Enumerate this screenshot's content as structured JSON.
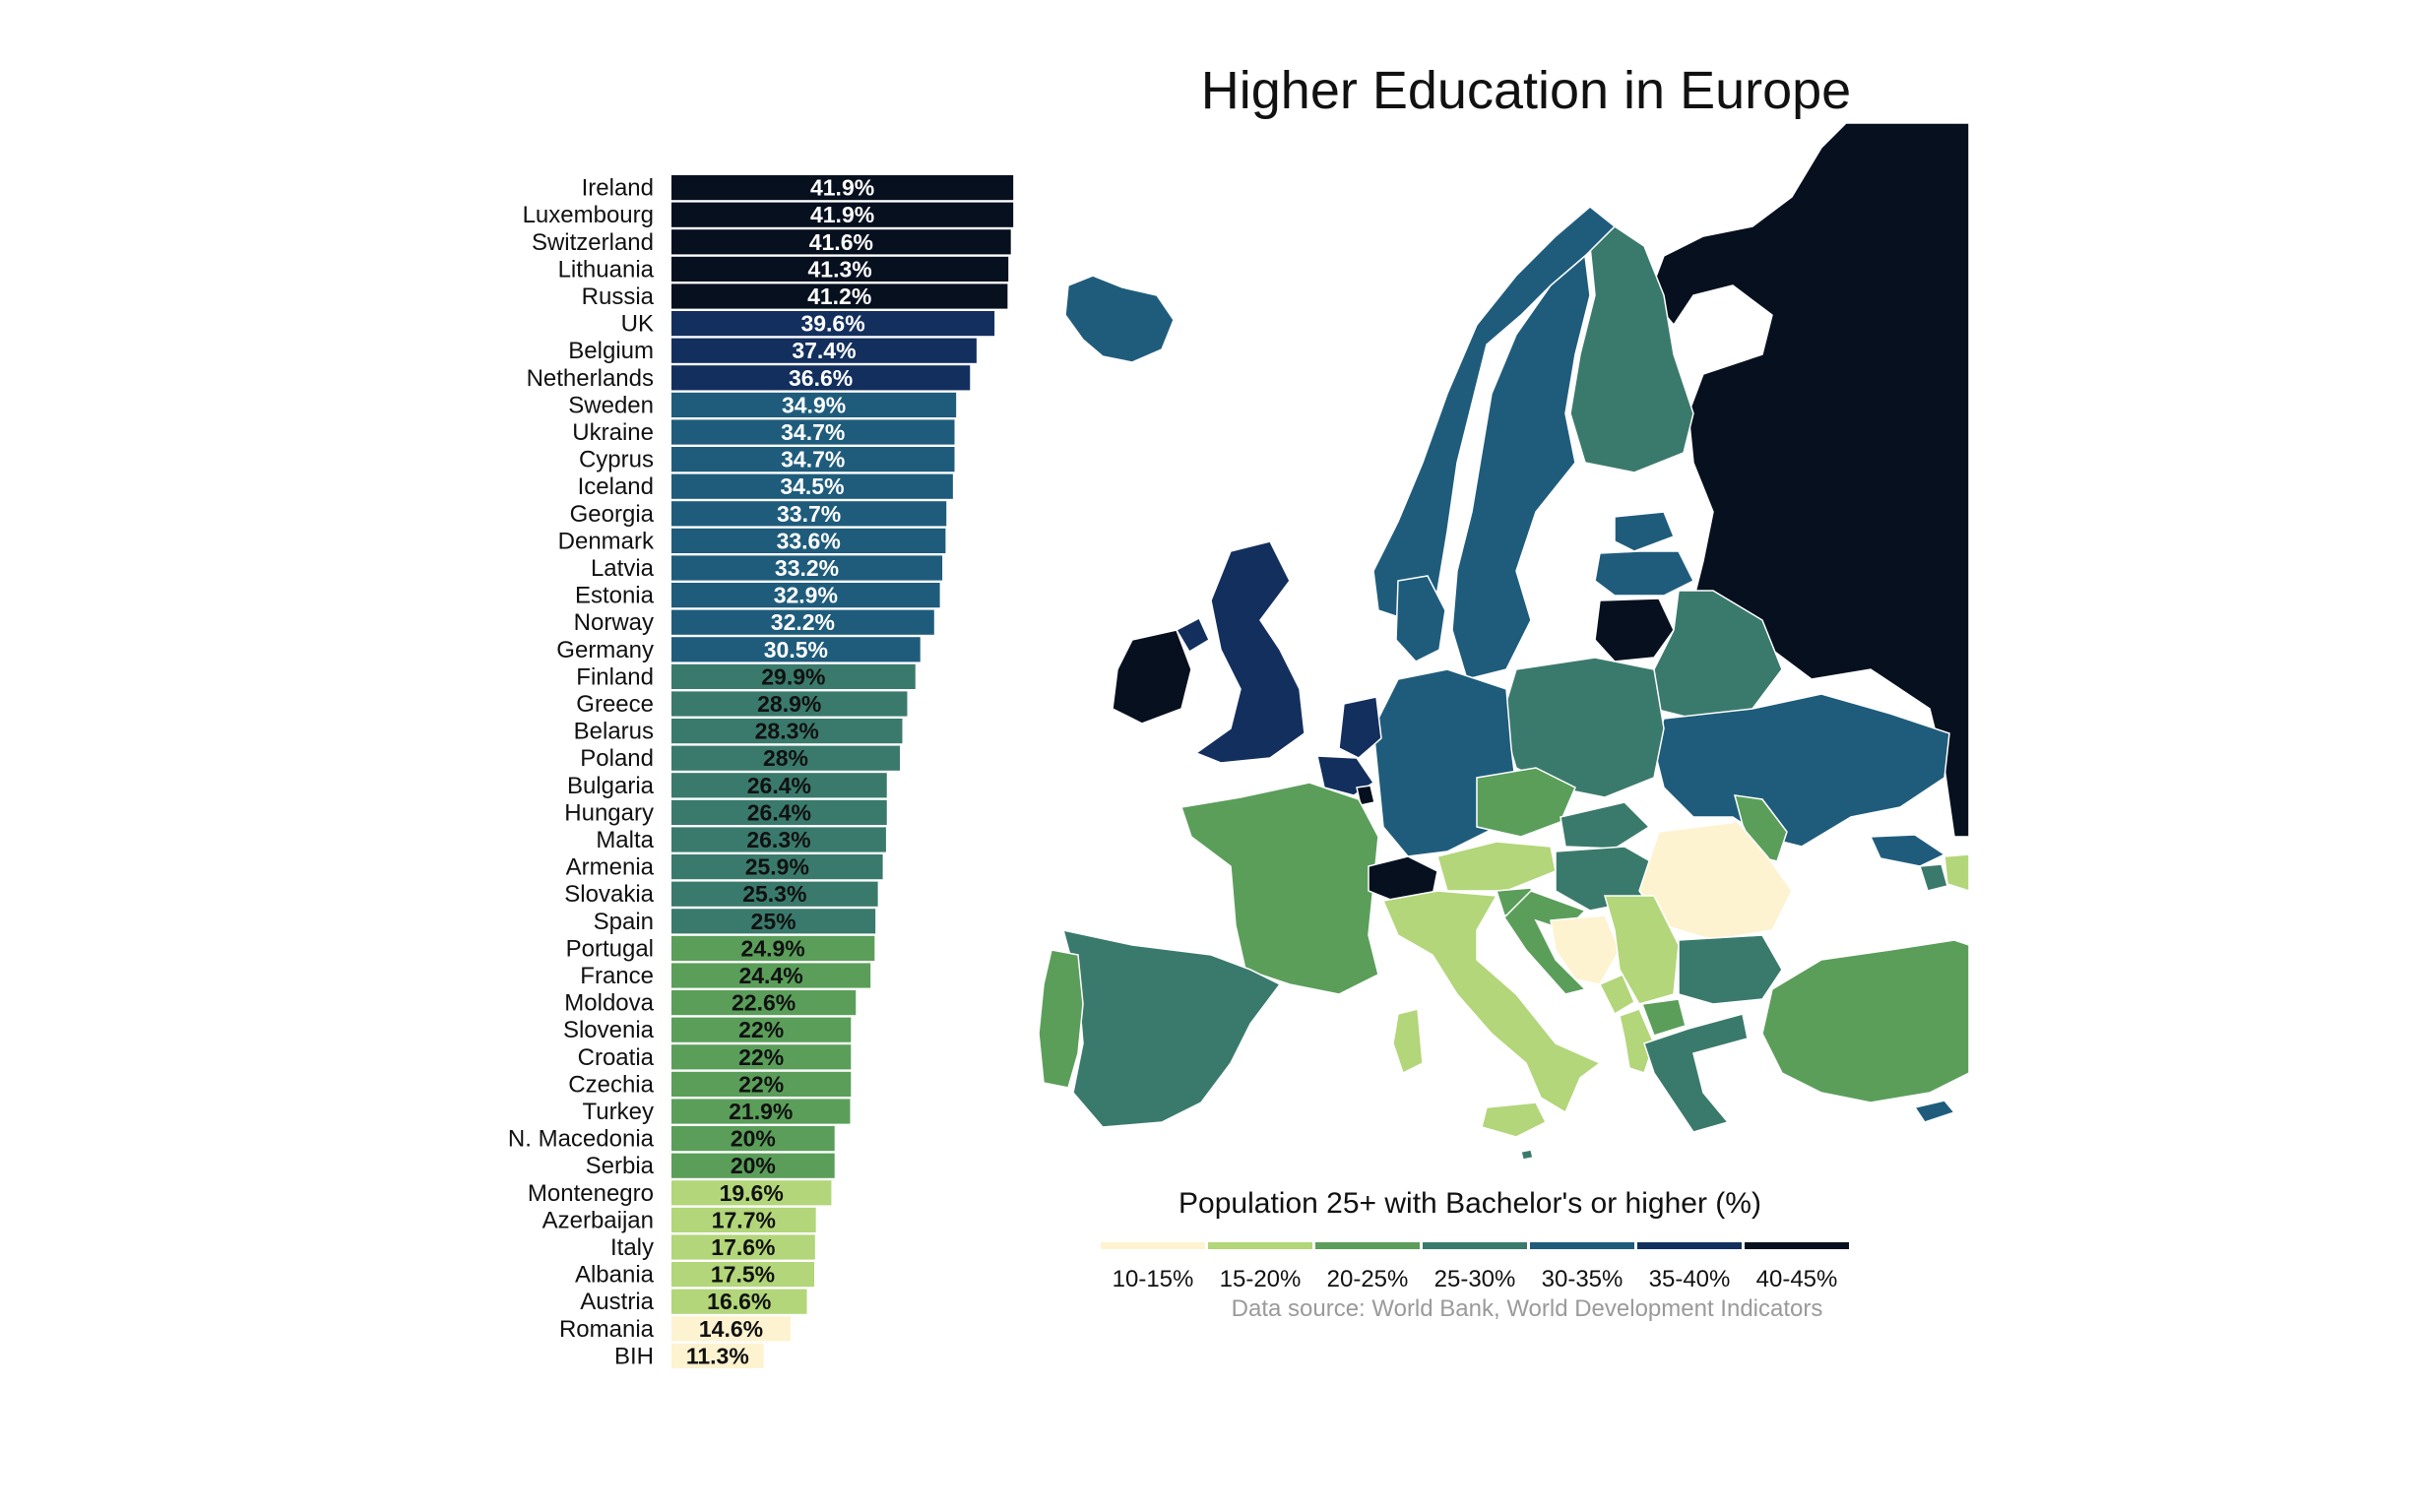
{
  "chart_data": {
    "type": "bar",
    "orientation": "horizontal",
    "title": "Higher Education in Europe",
    "categories": [
      "Ireland",
      "Luxembourg",
      "Switzerland",
      "Lithuania",
      "Russia",
      "UK",
      "Belgium",
      "Netherlands",
      "Sweden",
      "Ukraine",
      "Cyprus",
      "Iceland",
      "Georgia",
      "Denmark",
      "Latvia",
      "Estonia",
      "Norway",
      "Germany",
      "Finland",
      "Greece",
      "Belarus",
      "Poland",
      "Bulgaria",
      "Hungary",
      "Malta",
      "Armenia",
      "Slovakia",
      "Spain",
      "Portugal",
      "France",
      "Moldova",
      "Slovenia",
      "Croatia",
      "Czechia",
      "Turkey",
      "N. Macedonia",
      "Serbia",
      "Montenegro",
      "Azerbaijan",
      "Italy",
      "Albania",
      "Austria",
      "Romania",
      "BIH"
    ],
    "values": [
      41.9,
      41.9,
      41.6,
      41.3,
      41.2,
      39.6,
      37.4,
      36.6,
      34.9,
      34.7,
      34.7,
      34.5,
      33.7,
      33.6,
      33.2,
      32.9,
      32.2,
      30.5,
      29.9,
      28.9,
      28.3,
      28,
      26.4,
      26.4,
      26.3,
      25.9,
      25.3,
      25,
      24.9,
      24.4,
      22.6,
      22,
      22,
      22,
      21.9,
      20,
      20,
      19.6,
      17.7,
      17.6,
      17.5,
      16.6,
      14.6,
      11.3
    ],
    "value_labels": [
      "41.9%",
      "41.9%",
      "41.6%",
      "41.3%",
      "41.2%",
      "39.6%",
      "37.4%",
      "36.6%",
      "34.9%",
      "34.7%",
      "34.7%",
      "34.5%",
      "33.7%",
      "33.6%",
      "33.2%",
      "32.9%",
      "32.2%",
      "30.5%",
      "29.9%",
      "28.9%",
      "28.3%",
      "28%",
      "26.4%",
      "26.4%",
      "26.3%",
      "25.9%",
      "25.3%",
      "25%",
      "24.9%",
      "24.4%",
      "22.6%",
      "22%",
      "22%",
      "22%",
      "21.9%",
      "20%",
      "20%",
      "19.6%",
      "17.7%",
      "17.6%",
      "17.5%",
      "16.6%",
      "14.6%",
      "11.3%"
    ],
    "xlim": [
      0,
      42
    ],
    "legend": {
      "title": "Population 25+ with Bachelor's or higher (%)",
      "bins": [
        {
          "label": "10-15%",
          "color": "#fdf3d0"
        },
        {
          "label": "15-20%",
          "color": "#b2d679"
        },
        {
          "label": "20-25%",
          "color": "#5a9e5a"
        },
        {
          "label": "25-30%",
          "color": "#3a7a6c"
        },
        {
          "label": "30-35%",
          "color": "#1f5c7c"
        },
        {
          "label": "35-40%",
          "color": "#132f5e"
        },
        {
          "label": "40-45%",
          "color": "#07101f"
        }
      ]
    },
    "source": "Data source: World Bank, World Development Indicators",
    "map": {
      "regions": [
        {
          "name": "Russia",
          "bin": 6
        },
        {
          "name": "Ireland",
          "bin": 6
        },
        {
          "name": "Switzerland",
          "bin": 6
        },
        {
          "name": "Lithuania",
          "bin": 6
        },
        {
          "name": "Luxembourg",
          "bin": 6
        },
        {
          "name": "UK",
          "bin": 5
        },
        {
          "name": "Belgium",
          "bin": 5
        },
        {
          "name": "Netherlands",
          "bin": 5
        },
        {
          "name": "Iceland",
          "bin": 4
        },
        {
          "name": "Norway",
          "bin": 4
        },
        {
          "name": "Sweden",
          "bin": 4
        },
        {
          "name": "Estonia",
          "bin": 4
        },
        {
          "name": "Latvia",
          "bin": 4
        },
        {
          "name": "Germany",
          "bin": 4
        },
        {
          "name": "Ukraine",
          "bin": 4
        },
        {
          "name": "Denmark",
          "bin": 4
        },
        {
          "name": "Cyprus",
          "bin": 4
        },
        {
          "name": "Georgia",
          "bin": 4
        },
        {
          "name": "Finland",
          "bin": 3
        },
        {
          "name": "Belarus",
          "bin": 3
        },
        {
          "name": "Poland",
          "bin": 3
        },
        {
          "name": "Spain",
          "bin": 3
        },
        {
          "name": "Greece",
          "bin": 3
        },
        {
          "name": "Bulgaria",
          "bin": 3
        },
        {
          "name": "Hungary",
          "bin": 3
        },
        {
          "name": "Slovakia",
          "bin": 3
        },
        {
          "name": "Malta",
          "bin": 3
        },
        {
          "name": "Armenia",
          "bin": 3
        },
        {
          "name": "France",
          "bin": 2
        },
        {
          "name": "Portugal",
          "bin": 2
        },
        {
          "name": "Czechia",
          "bin": 2
        },
        {
          "name": "Slovenia",
          "bin": 2
        },
        {
          "name": "Croatia",
          "bin": 2
        },
        {
          "name": "Turkey",
          "bin": 2
        },
        {
          "name": "Moldova",
          "bin": 2
        },
        {
          "name": "N. Macedonia",
          "bin": 2
        },
        {
          "name": "Italy",
          "bin": 1
        },
        {
          "name": "Austria",
          "bin": 1
        },
        {
          "name": "Serbia",
          "bin": 1
        },
        {
          "name": "Montenegro",
          "bin": 1
        },
        {
          "name": "Albania",
          "bin": 1
        },
        {
          "name": "Azerbaijan",
          "bin": 1
        },
        {
          "name": "Romania",
          "bin": 0
        },
        {
          "name": "BIH",
          "bin": 0
        }
      ]
    }
  }
}
